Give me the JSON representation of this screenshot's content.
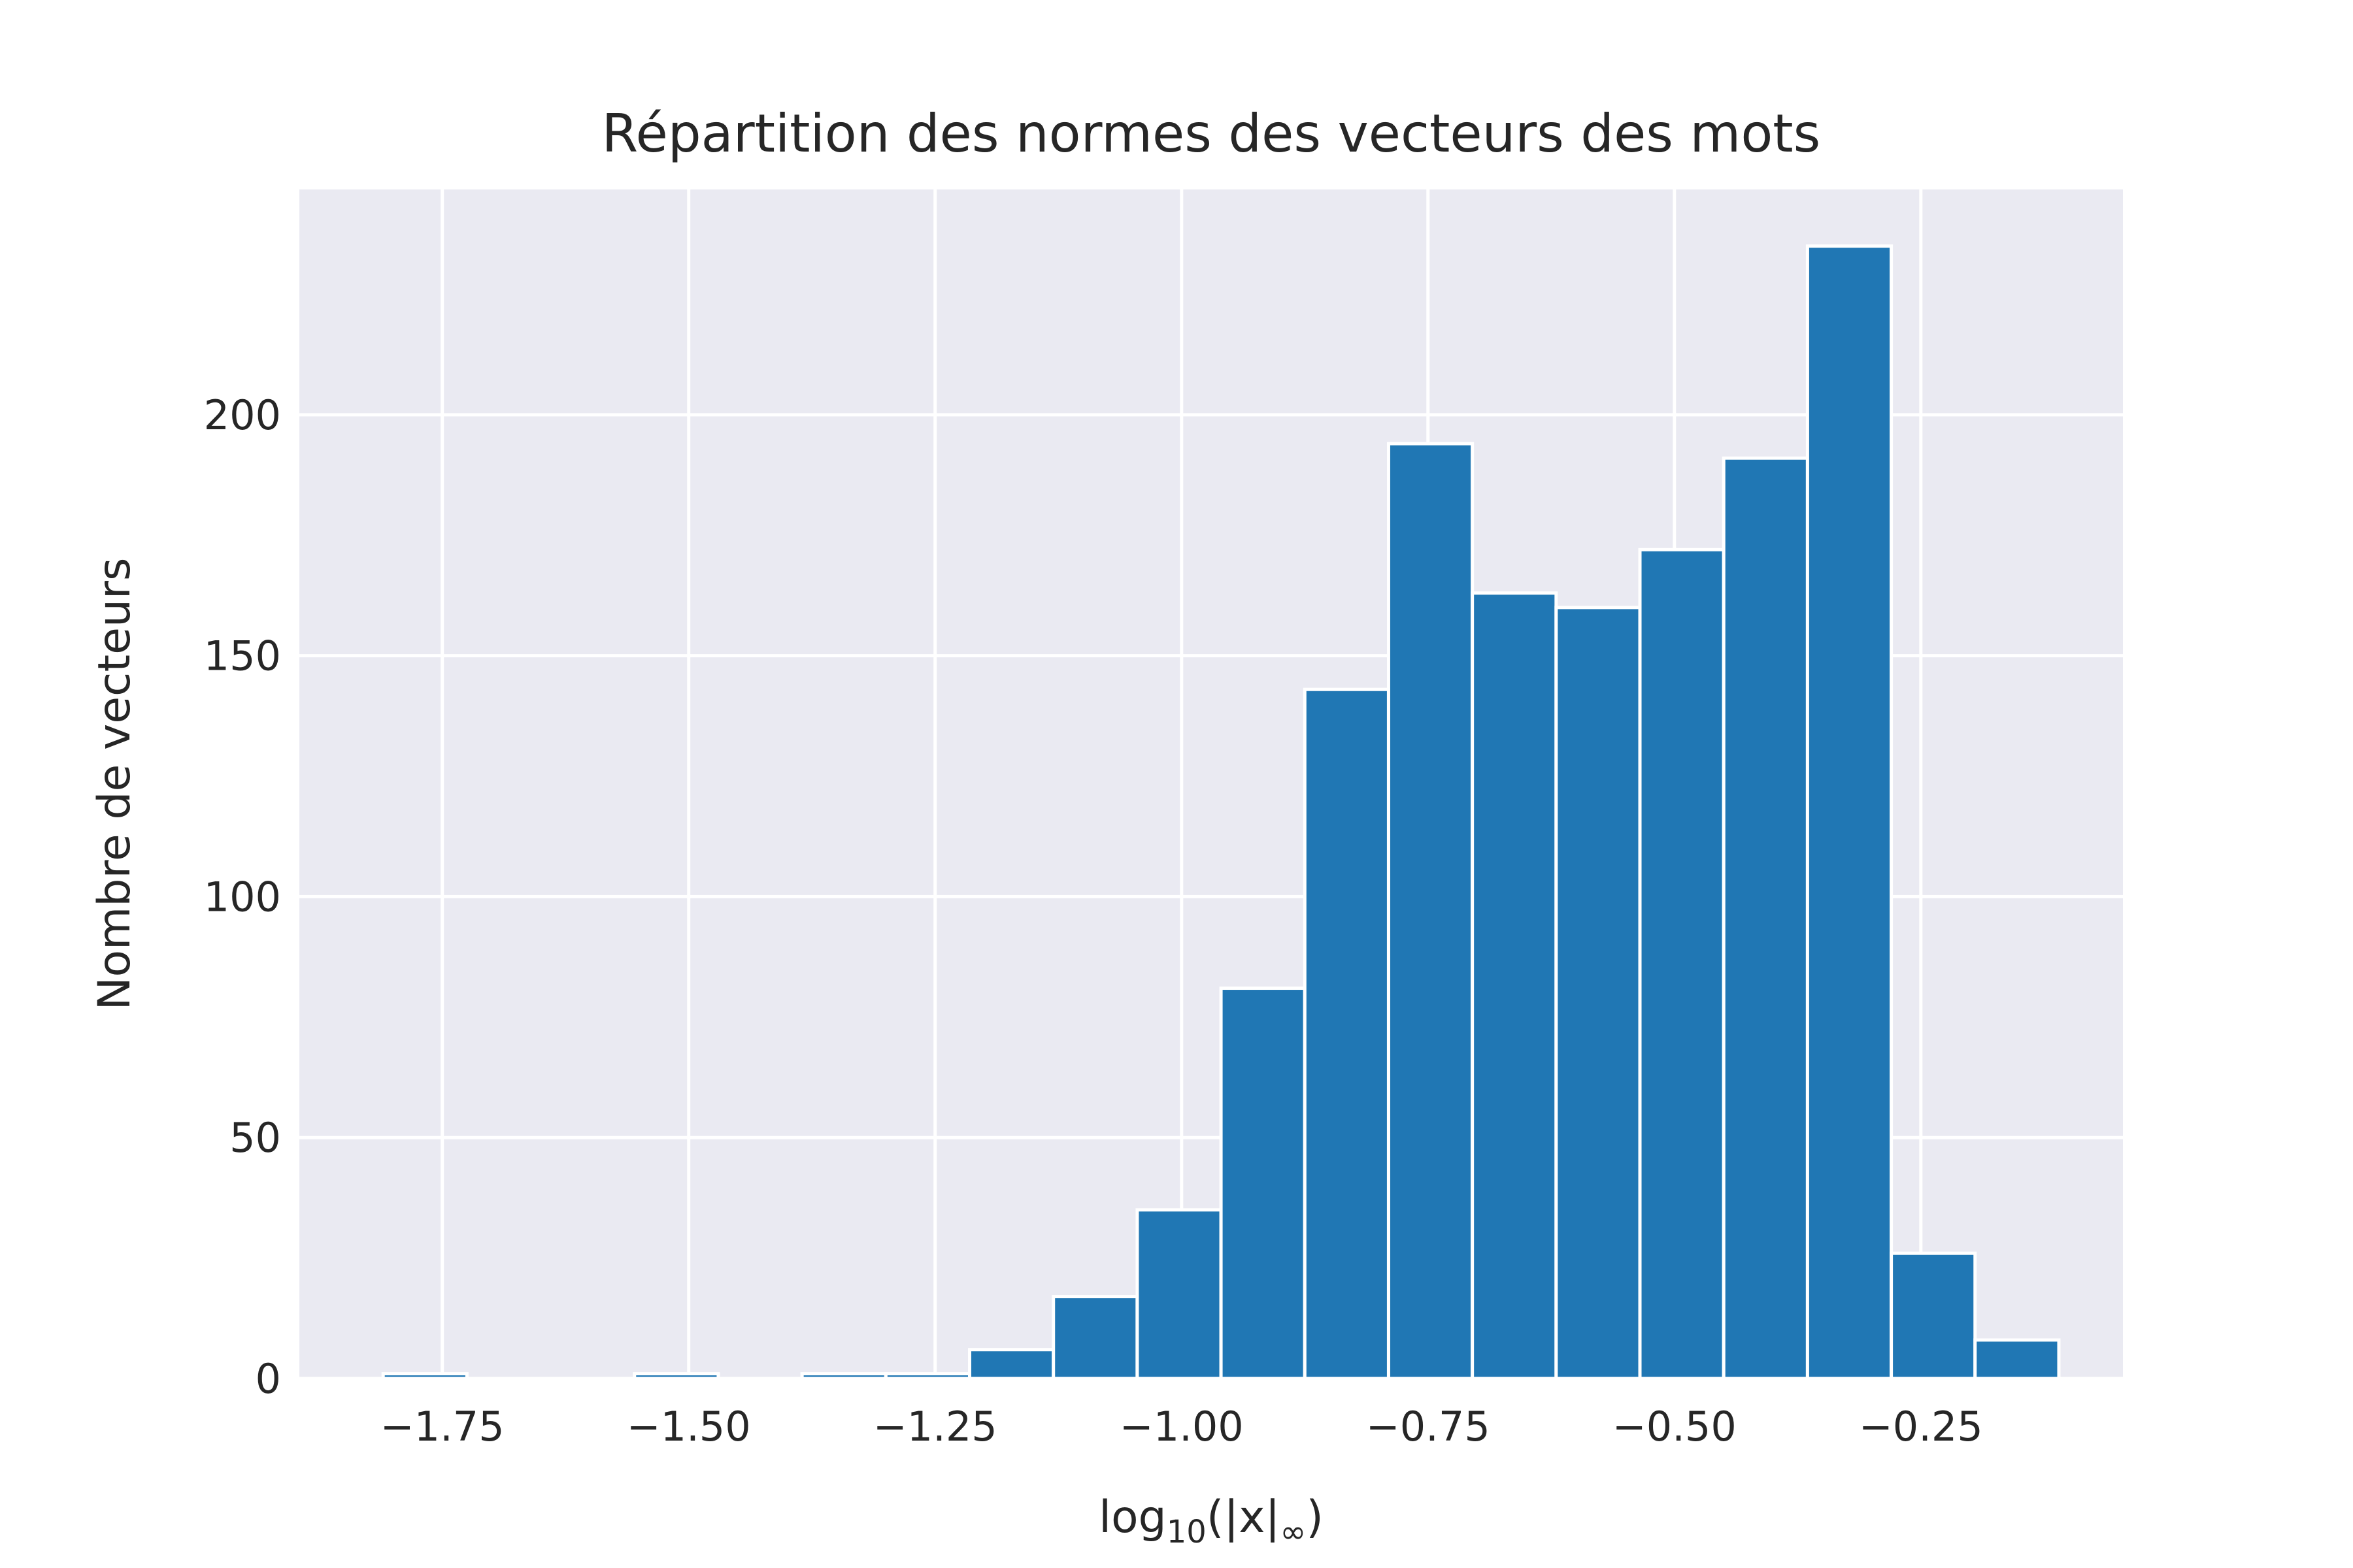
{
  "chart_data": {
    "type": "bar",
    "title": "Répartition des normes des vecteurs des mots",
    "xlabel": {
      "base": "log",
      "subscript": "10",
      "arg": "(|x|",
      "arg_sub": "∞",
      "close": ")"
    },
    "ylabel": "Nombre de vecteurs",
    "xlim": [
      -1.895,
      -0.045
    ],
    "ylim": [
      0,
      246.75
    ],
    "grid": true,
    "x_ticks": [
      -1.75,
      -1.5,
      -1.25,
      -1.0,
      -0.75,
      -0.5,
      -0.25
    ],
    "x_tick_labels": [
      "−1.75",
      "−1.50",
      "−1.25",
      "−1.00",
      "−0.75",
      "−0.50",
      "−0.25"
    ],
    "y_ticks": [
      0,
      50,
      100,
      150,
      200
    ],
    "y_tick_labels": [
      "0",
      "50",
      "100",
      "150",
      "200"
    ],
    "bin_width": 0.085,
    "bins": [
      {
        "start": -1.81,
        "value": 1
      },
      {
        "start": -1.725,
        "value": 0
      },
      {
        "start": -1.64,
        "value": 0
      },
      {
        "start": -1.555,
        "value": 1
      },
      {
        "start": -1.47,
        "value": 0
      },
      {
        "start": -1.385,
        "value": 1
      },
      {
        "start": -1.3,
        "value": 1
      },
      {
        "start": -1.215,
        "value": 6
      },
      {
        "start": -1.13,
        "value": 17
      },
      {
        "start": -1.045,
        "value": 35
      },
      {
        "start": -0.96,
        "value": 81
      },
      {
        "start": -0.875,
        "value": 143
      },
      {
        "start": -0.79,
        "value": 194
      },
      {
        "start": -0.705,
        "value": 163
      },
      {
        "start": -0.62,
        "value": 160
      },
      {
        "start": -0.535,
        "value": 172
      },
      {
        "start": -0.45,
        "value": 191
      },
      {
        "start": -0.365,
        "value": 235
      },
      {
        "start": -0.28,
        "value": 26
      },
      {
        "start": -0.195,
        "value": 8
      }
    ],
    "colors": {
      "bar": "#2077b4",
      "background": "#eaeaf2",
      "grid": "#ffffff",
      "text": "#262626"
    }
  }
}
